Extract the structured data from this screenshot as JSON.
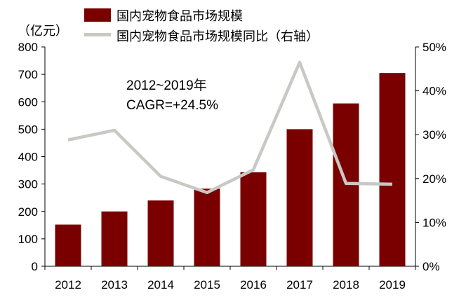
{
  "chart_data": {
    "type": "bar+line",
    "title": "",
    "categories": [
      "2012",
      "2013",
      "2014",
      "2015",
      "2016",
      "2017",
      "2018",
      "2019"
    ],
    "series": [
      {
        "name": "国内宠物食品市场规模",
        "type": "bar",
        "axis": "left",
        "values": [
          152,
          200,
          240,
          283,
          343,
          500,
          594,
          705
        ]
      },
      {
        "name": "国内宠物食品市场规模同比（右轴）",
        "type": "line",
        "axis": "right",
        "values": [
          28.8,
          31.0,
          20.5,
          16.8,
          22.0,
          46.5,
          18.9,
          18.7
        ]
      }
    ],
    "yleft": {
      "unit_label": "（亿元）",
      "range": [
        0,
        800
      ],
      "ticks": [
        "0",
        "100",
        "200",
        "300",
        "400",
        "500",
        "600",
        "700",
        "800"
      ]
    },
    "yright": {
      "range": [
        0,
        50
      ],
      "ticks": [
        "0%",
        "10%",
        "20%",
        "30%",
        "40%",
        "50%"
      ]
    },
    "annotation": {
      "line1": "2012~2019年",
      "line2": "CAGR=+24.5%"
    },
    "colors": {
      "bar": "#7a0000",
      "line": "#c8c8c4",
      "axis": "#000000"
    },
    "legend_position": "top"
  }
}
